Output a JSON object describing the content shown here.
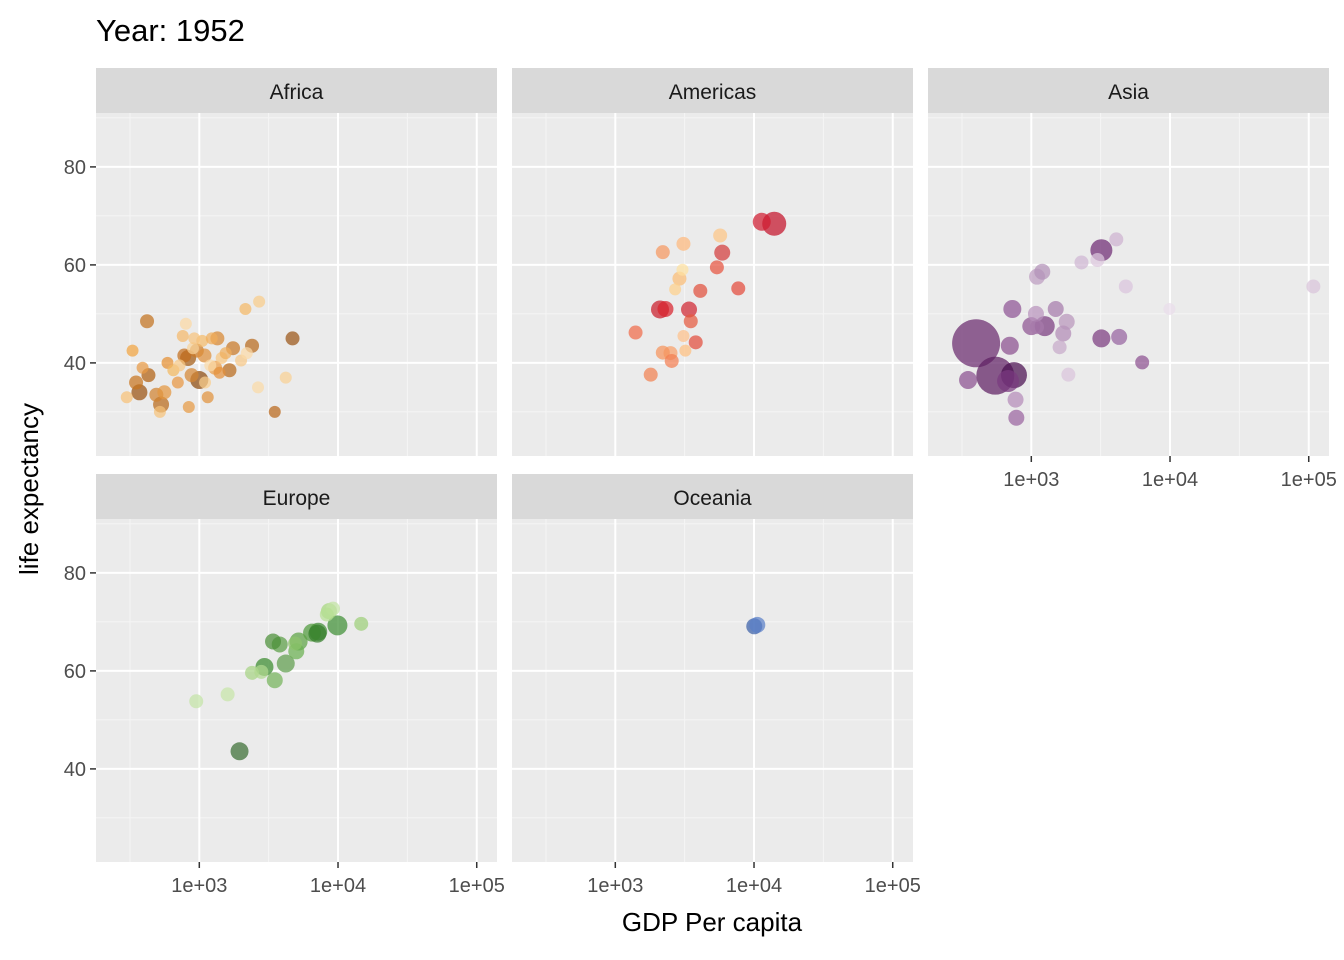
{
  "chart_data": {
    "type": "scatter",
    "title": "Year: 1952",
    "xlabel": "GDP Per capita",
    "ylabel": "life expectancy",
    "x_scale": "log10",
    "xlim": [
      180,
      140000
    ],
    "ylim": [
      21,
      91
    ],
    "x_ticks": [
      1000,
      10000,
      100000
    ],
    "x_tick_labels": [
      "1e+03",
      "1e+04",
      "1e+05"
    ],
    "y_ticks": [
      40,
      60,
      80
    ],
    "y_tick_labels": [
      "40",
      "60",
      "80"
    ],
    "grid": true,
    "legend": "none",
    "panels": [
      {
        "name": "Africa",
        "color": "#d9822b",
        "points": [
          [
            330,
            42.5,
            3,
            "#f1a340"
          ],
          [
            420,
            48.5,
            4,
            "#c2711f"
          ],
          [
            300,
            33,
            3,
            "#f7c177"
          ],
          [
            390,
            39,
            3,
            "#e89a45"
          ],
          [
            430,
            37.5,
            4,
            "#b06010"
          ],
          [
            350,
            36,
            4,
            "#c7741f"
          ],
          [
            370,
            34,
            5,
            "#9a5210"
          ],
          [
            490,
            33.5,
            4,
            "#d08230"
          ],
          [
            530,
            31.5,
            5,
            "#b8691a"
          ],
          [
            520,
            30,
            3,
            "#f5c27a"
          ],
          [
            560,
            34,
            4,
            "#e3953e"
          ],
          [
            590,
            40,
            3,
            "#e58f32"
          ],
          [
            650,
            38.5,
            3,
            "#f3b860"
          ],
          [
            720,
            39.5,
            3,
            "#f7c884"
          ],
          [
            780,
            41.5,
            4,
            "#c46e1c"
          ],
          [
            830,
            41,
            5,
            "#a25a12"
          ],
          [
            880,
            37.5,
            4,
            "#d48735"
          ],
          [
            900,
            43,
            3,
            "#f8d39a"
          ],
          [
            960,
            42.5,
            4,
            "#cc7a26"
          ],
          [
            1000,
            36.5,
            6,
            "#8c4a0c"
          ],
          [
            1050,
            44.5,
            3,
            "#f4bb6b"
          ],
          [
            1090,
            41.5,
            4,
            "#de8f3a"
          ],
          [
            1150,
            33,
            3,
            "#e1913c"
          ],
          [
            1200,
            39.5,
            3,
            "#f9d9a8"
          ],
          [
            1300,
            39,
            4,
            "#ea9d47"
          ],
          [
            1350,
            45,
            4,
            "#d78631"
          ],
          [
            1450,
            41,
            3,
            "#f6c57e"
          ],
          [
            1550,
            42,
            3,
            "#efad5b"
          ],
          [
            1650,
            38.5,
            4,
            "#b8691a"
          ],
          [
            1750,
            43,
            4,
            "#c87725"
          ],
          [
            2000,
            40.5,
            3,
            "#f7c887"
          ],
          [
            2200,
            42,
            3,
            "#fbd9a7"
          ],
          [
            2400,
            43.5,
            4,
            "#b76a1d"
          ],
          [
            2650,
            35,
            3,
            "#fad9a6"
          ],
          [
            2700,
            52.5,
            3,
            "#f8cc89"
          ],
          [
            2150,
            51,
            3,
            "#f4b967"
          ],
          [
            3500,
            30,
            3,
            "#b8661a"
          ],
          [
            4200,
            37,
            3,
            "#f8d093"
          ],
          [
            4700,
            45,
            4,
            "#9a5516"
          ],
          [
            840,
            31,
            3,
            "#e69a44"
          ],
          [
            800,
            48,
            3,
            "#fbd8a3"
          ],
          [
            1100,
            36,
            3,
            "#f9cf8e"
          ],
          [
            760,
            45.5,
            3,
            "#f4b96b"
          ],
          [
            700,
            36,
            3,
            "#e89641"
          ],
          [
            920,
            45,
            3,
            "#f6c47e"
          ],
          [
            1400,
            38,
            3,
            "#e3903b"
          ],
          [
            1230,
            45,
            3,
            "#f0ad5a"
          ]
        ]
      },
      {
        "name": "Americas",
        "color": "#cb181d",
        "points": [
          [
            13990,
            68.4,
            9,
            "#c4122a"
          ],
          [
            11370,
            68.8,
            6,
            "#d01c30"
          ],
          [
            5900,
            62.5,
            5,
            "#d33c3c"
          ],
          [
            5700,
            66,
            4,
            "#fcc585"
          ],
          [
            5400,
            59.5,
            4,
            "#e6533f"
          ],
          [
            3100,
            64.3,
            4,
            "#fdb87d"
          ],
          [
            2200,
            62.6,
            4,
            "#f59760"
          ],
          [
            2900,
            57.2,
            4,
            "#fbbd74"
          ],
          [
            3050,
            59,
            3,
            "#fde0a0"
          ],
          [
            4100,
            54.7,
            4,
            "#e04f3c"
          ],
          [
            7700,
            55.2,
            4,
            "#e34a3a"
          ],
          [
            2100,
            50.9,
            6,
            "#c91c2a"
          ],
          [
            2300,
            51,
            5,
            "#d8232c"
          ],
          [
            3400,
            50.9,
            5,
            "#d02530"
          ],
          [
            2700,
            55,
            3,
            "#fdd08a"
          ],
          [
            3500,
            48.5,
            4,
            "#e4593f"
          ],
          [
            1400,
            46.2,
            4,
            "#f06b4a"
          ],
          [
            3100,
            45.5,
            3,
            "#fdc18a"
          ],
          [
            3800,
            44.2,
            4,
            "#e24c3c"
          ],
          [
            2500,
            42,
            4,
            "#f8a06a"
          ],
          [
            2200,
            42.1,
            4,
            "#f5935b"
          ],
          [
            3200,
            42.5,
            3,
            "#fdbf80"
          ],
          [
            2550,
            40.4,
            4,
            "#f27e52"
          ],
          [
            1800,
            37.6,
            4,
            "#f18150"
          ]
        ]
      },
      {
        "name": "Asia",
        "color": "#6a1a6a",
        "points": [
          [
            400,
            44,
            21,
            "#6a2a6e"
          ],
          [
            550,
            37.4,
            16,
            "#5e1e62"
          ],
          [
            750,
            37.5,
            10,
            "#4a0f50"
          ],
          [
            680,
            36.3,
            8,
            "#7a3a80"
          ],
          [
            350,
            36.5,
            6,
            "#8b5090"
          ],
          [
            780,
            28.8,
            5,
            "#9a64a0"
          ],
          [
            770,
            32.5,
            5,
            "#b48ab8"
          ],
          [
            700,
            43.5,
            6,
            "#8a4f8f"
          ],
          [
            730,
            51,
            6,
            "#8e5394"
          ],
          [
            1000,
            47.5,
            6,
            "#8d5392"
          ],
          [
            1080,
            50,
            5,
            "#b993bc"
          ],
          [
            1250,
            47.5,
            7,
            "#7a3b7f"
          ],
          [
            1500,
            51,
            5,
            "#a57aaa"
          ],
          [
            1600,
            43.2,
            4,
            "#c6a9c9"
          ],
          [
            1700,
            46,
            5,
            "#b28ab6"
          ],
          [
            1800,
            48.4,
            5,
            "#b896bb"
          ],
          [
            1850,
            37.6,
            4,
            "#d9c4db"
          ],
          [
            1100,
            57.6,
            5,
            "#bc9dc0"
          ],
          [
            1200,
            58.6,
            5,
            "#b391b8"
          ],
          [
            2300,
            60.5,
            4,
            "#cfb5d2"
          ],
          [
            3000,
            61,
            4,
            "#dcc8de"
          ],
          [
            3200,
            63,
            8,
            "#6e2a73"
          ],
          [
            4100,
            65.2,
            4,
            "#cdb2d0"
          ],
          [
            4800,
            55.6,
            4,
            "#d9c4dc"
          ],
          [
            3200,
            45,
            6,
            "#7b3c80"
          ],
          [
            4300,
            45.3,
            5,
            "#9563a0"
          ],
          [
            6300,
            40.1,
            4,
            "#8c5190"
          ],
          [
            9900,
            51,
            3,
            "#e9dcea"
          ],
          [
            108000,
            55.6,
            4,
            "#d8c3da"
          ],
          [
            1100,
            47.3,
            4,
            "#a67aab"
          ]
        ]
      },
      {
        "name": "Europe",
        "color": "#238b45",
        "points": [
          [
            9900,
            69.3,
            7,
            "#3f8f35"
          ],
          [
            8600,
            72.2,
            5,
            "#a6d77e"
          ],
          [
            9200,
            72.7,
            4,
            "#c2e3a3"
          ],
          [
            8300,
            71.5,
            4,
            "#b6df93"
          ],
          [
            14700,
            69.6,
            4,
            "#9ccf78"
          ],
          [
            7200,
            68,
            6,
            "#3f8a33"
          ],
          [
            6500,
            67.8,
            6,
            "#4f9a3c"
          ],
          [
            7100,
            67.6,
            6,
            "#357e2b"
          ],
          [
            5200,
            66,
            6,
            "#5ba244"
          ],
          [
            4900,
            65.6,
            4,
            "#8dc46c"
          ],
          [
            3800,
            65.4,
            5,
            "#5a9e45"
          ],
          [
            3400,
            66,
            5,
            "#4b8f38"
          ],
          [
            5000,
            64,
            5,
            "#6ab050"
          ],
          [
            4200,
            61.5,
            6,
            "#5e9d4c"
          ],
          [
            2950,
            60.8,
            6,
            "#3a8a2e"
          ],
          [
            3500,
            58.1,
            5,
            "#75b35a"
          ],
          [
            2400,
            59.6,
            4,
            "#a6d384"
          ],
          [
            2800,
            59.8,
            4,
            "#b0d88f"
          ],
          [
            1600,
            55.2,
            4,
            "#c6e4a8"
          ],
          [
            950,
            53.8,
            4,
            "#c4e3a6"
          ],
          [
            1950,
            43.6,
            6,
            "#3a6e33"
          ]
        ]
      },
      {
        "name": "Oceania",
        "color": "#4a6fb8",
        "points": [
          [
            10040,
            69.1,
            5,
            "#3a5fa8"
          ],
          [
            10560,
            69.4,
            5,
            "#5a7fc8"
          ]
        ]
      }
    ]
  }
}
